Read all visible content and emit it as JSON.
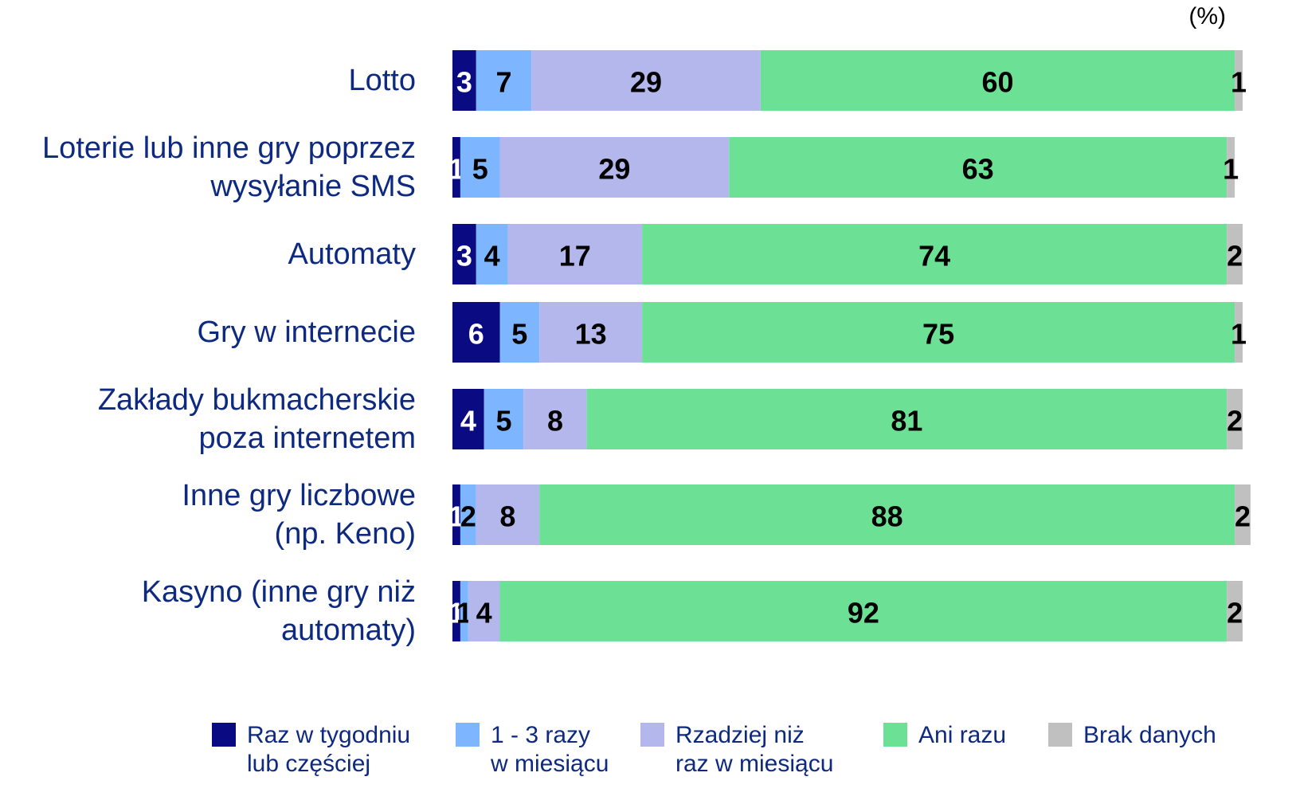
{
  "chart_data": {
    "type": "stacked-bar-horizontal",
    "unit_label": "(%)",
    "categories": [
      "Lotto",
      "Loterie lub inne gry poprzez\nwysyłanie SMS",
      "Automaty",
      "Gry w internecie",
      "Zakłady bukmacherskie\npoza internetem",
      "Inne gry liczbowe\n(np. Keno)",
      "Kasyno (inne gry niż\nautomaty)"
    ],
    "xlim": [
      0,
      100
    ],
    "series": [
      {
        "name": "Raz w tygodniu\nlub częściej",
        "color": "#0a0a82",
        "label_color": "#ffffff",
        "values": [
          3,
          1,
          3,
          6,
          4,
          1,
          1
        ]
      },
      {
        "name": "1 - 3 razy\nw miesiącu",
        "color": "#7db5ff",
        "label_color": "#000000",
        "values": [
          7,
          5,
          4,
          5,
          5,
          2,
          1
        ]
      },
      {
        "name": "Rzadziej niż\nraz w miesiącu",
        "color": "#b4b7ec",
        "label_color": "#000000",
        "values": [
          29,
          29,
          17,
          13,
          8,
          8,
          4
        ]
      },
      {
        "name": "Ani razu",
        "color": "#6ce095",
        "label_color": "#000000",
        "values": [
          60,
          63,
          74,
          75,
          81,
          88,
          92
        ]
      },
      {
        "name": "Brak danych",
        "color": "#c0c0c0",
        "label_color": "#000000",
        "values": [
          1,
          1,
          2,
          1,
          2,
          2,
          2
        ]
      }
    ]
  }
}
